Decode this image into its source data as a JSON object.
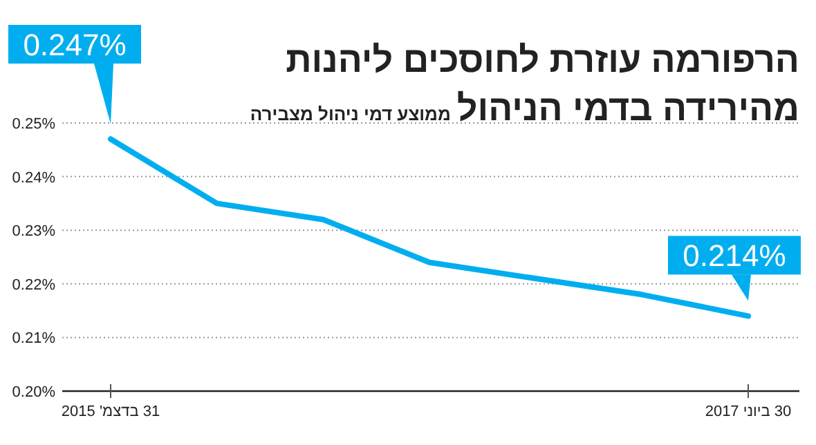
{
  "chart_data": {
    "type": "line",
    "title": "הרפורמה עוזרת לחוסכים ליהנות מהירידה בדמי הניהול",
    "subtitle": "ממוצע דמי ניהול מצבירה",
    "categories": [
      "31 בדצמ' 2015",
      null,
      null,
      null,
      null,
      null,
      "30 ביוני 2017"
    ],
    "series": [
      {
        "color": "#00aeef",
        "values": [
          0.247,
          0.235,
          0.232,
          0.224,
          0.221,
          0.218,
          0.214
        ],
        "value_labels": [
          "0.247%",
          null,
          null,
          null,
          null,
          null,
          "0.214%"
        ]
      }
    ],
    "ylim": [
      0.2,
      0.25
    ],
    "yticks": [
      {
        "value": 0.2,
        "label": "0.20%"
      },
      {
        "value": 0.21,
        "label": "0.21%"
      },
      {
        "value": 0.22,
        "label": "0.22%"
      },
      {
        "value": 0.23,
        "label": "0.23%"
      },
      {
        "value": 0.24,
        "label": "0.24%"
      },
      {
        "value": 0.25,
        "label": "0.25%"
      }
    ],
    "grid": "y"
  }
}
